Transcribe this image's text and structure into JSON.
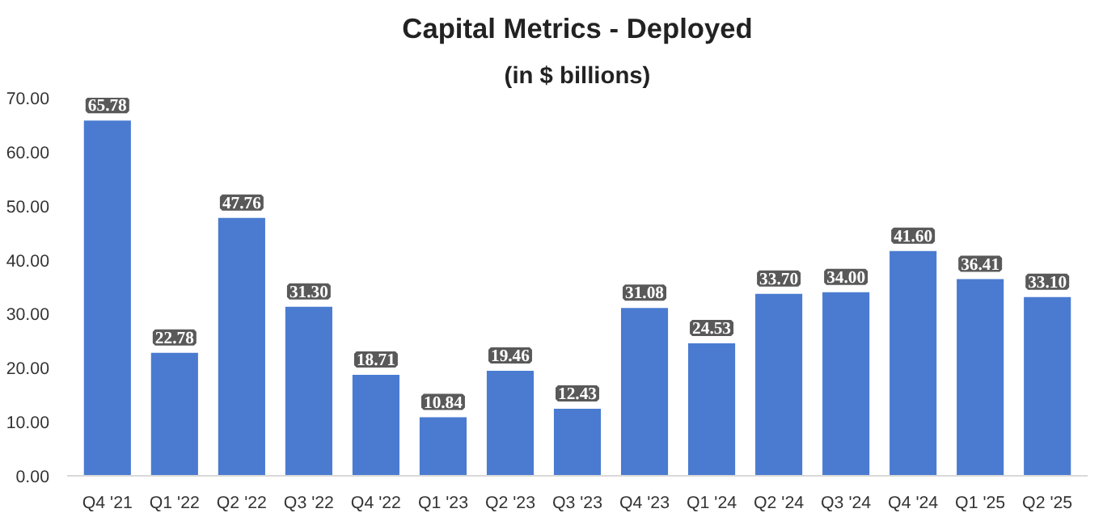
{
  "chart_data": {
    "type": "bar",
    "title": "Capital Metrics - Deployed",
    "subtitle": "(in $ billions)",
    "categories": [
      "Q4 '21",
      "Q1 '22",
      "Q2 '22",
      "Q3 '22",
      "Q4 '22",
      "Q1 '23",
      "Q2 '23",
      "Q3 '23",
      "Q4 '23",
      "Q1 '24",
      "Q2 '24",
      "Q3 '24",
      "Q4 '24",
      "Q1 '25",
      "Q2 '25"
    ],
    "values": [
      65.78,
      22.78,
      47.76,
      31.3,
      18.71,
      10.84,
      19.46,
      12.43,
      31.08,
      24.53,
      33.7,
      34.0,
      41.6,
      36.41,
      33.1
    ],
    "value_labels": [
      "65.78",
      "22.78",
      "47.76",
      "31.30",
      "18.71",
      "10.84",
      "19.46",
      "12.43",
      "31.08",
      "24.53",
      "33.70",
      "34.00",
      "41.60",
      "36.41",
      "33.10"
    ],
    "color": "#4a7bd0",
    "ylim": [
      0,
      70
    ],
    "yticks": [
      {
        "value": 0,
        "label": "0.00"
      },
      {
        "value": 10,
        "label": "10.00"
      },
      {
        "value": 20,
        "label": "20.00"
      },
      {
        "value": 30,
        "label": "30.00"
      },
      {
        "value": 40,
        "label": "40.00"
      },
      {
        "value": 50,
        "label": "50.00"
      },
      {
        "value": 60,
        "label": "60.00"
      },
      {
        "value": 70,
        "label": "70.00"
      }
    ],
    "grid": false
  }
}
